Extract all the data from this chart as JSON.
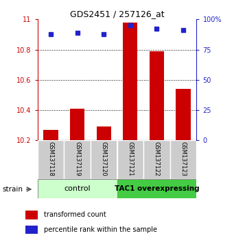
{
  "title": "GDS2451 / 257126_at",
  "samples": [
    "GSM137118",
    "GSM137119",
    "GSM137120",
    "GSM137121",
    "GSM137122",
    "GSM137123"
  ],
  "bar_values": [
    10.27,
    10.41,
    10.29,
    10.98,
    10.79,
    10.54
  ],
  "percentile_values": [
    88,
    89,
    88,
    95,
    92,
    91
  ],
  "bar_color": "#cc0000",
  "dot_color": "#2222cc",
  "ylim_left": [
    10.2,
    11.0
  ],
  "ylim_right": [
    0,
    100
  ],
  "yticks_left": [
    10.2,
    10.4,
    10.6,
    10.8,
    11.0
  ],
  "ytick_labels_left": [
    "10.2",
    "10.4",
    "10.6",
    "10.8",
    "11"
  ],
  "yticks_right": [
    0,
    25,
    50,
    75,
    100
  ],
  "yticklabels_right": [
    "0",
    "25",
    "50",
    "75",
    "100%"
  ],
  "groups": [
    {
      "label": "control",
      "start": 0,
      "end": 3,
      "color": "#ccffcc"
    },
    {
      "label": "TAC1 overexpressing",
      "start": 3,
      "end": 6,
      "color": "#44cc44"
    }
  ],
  "sample_row_color": "#cccccc",
  "legend_items": [
    {
      "color": "#cc0000",
      "label": "transformed count"
    },
    {
      "color": "#2222cc",
      "label": "percentile rank within the sample"
    }
  ],
  "strain_label": "strain",
  "bar_width": 0.55,
  "axis_color_left": "#cc0000",
  "axis_color_right": "#2222cc",
  "grid_color": "black",
  "grid_linestyle": ":",
  "grid_linewidth": 0.7
}
